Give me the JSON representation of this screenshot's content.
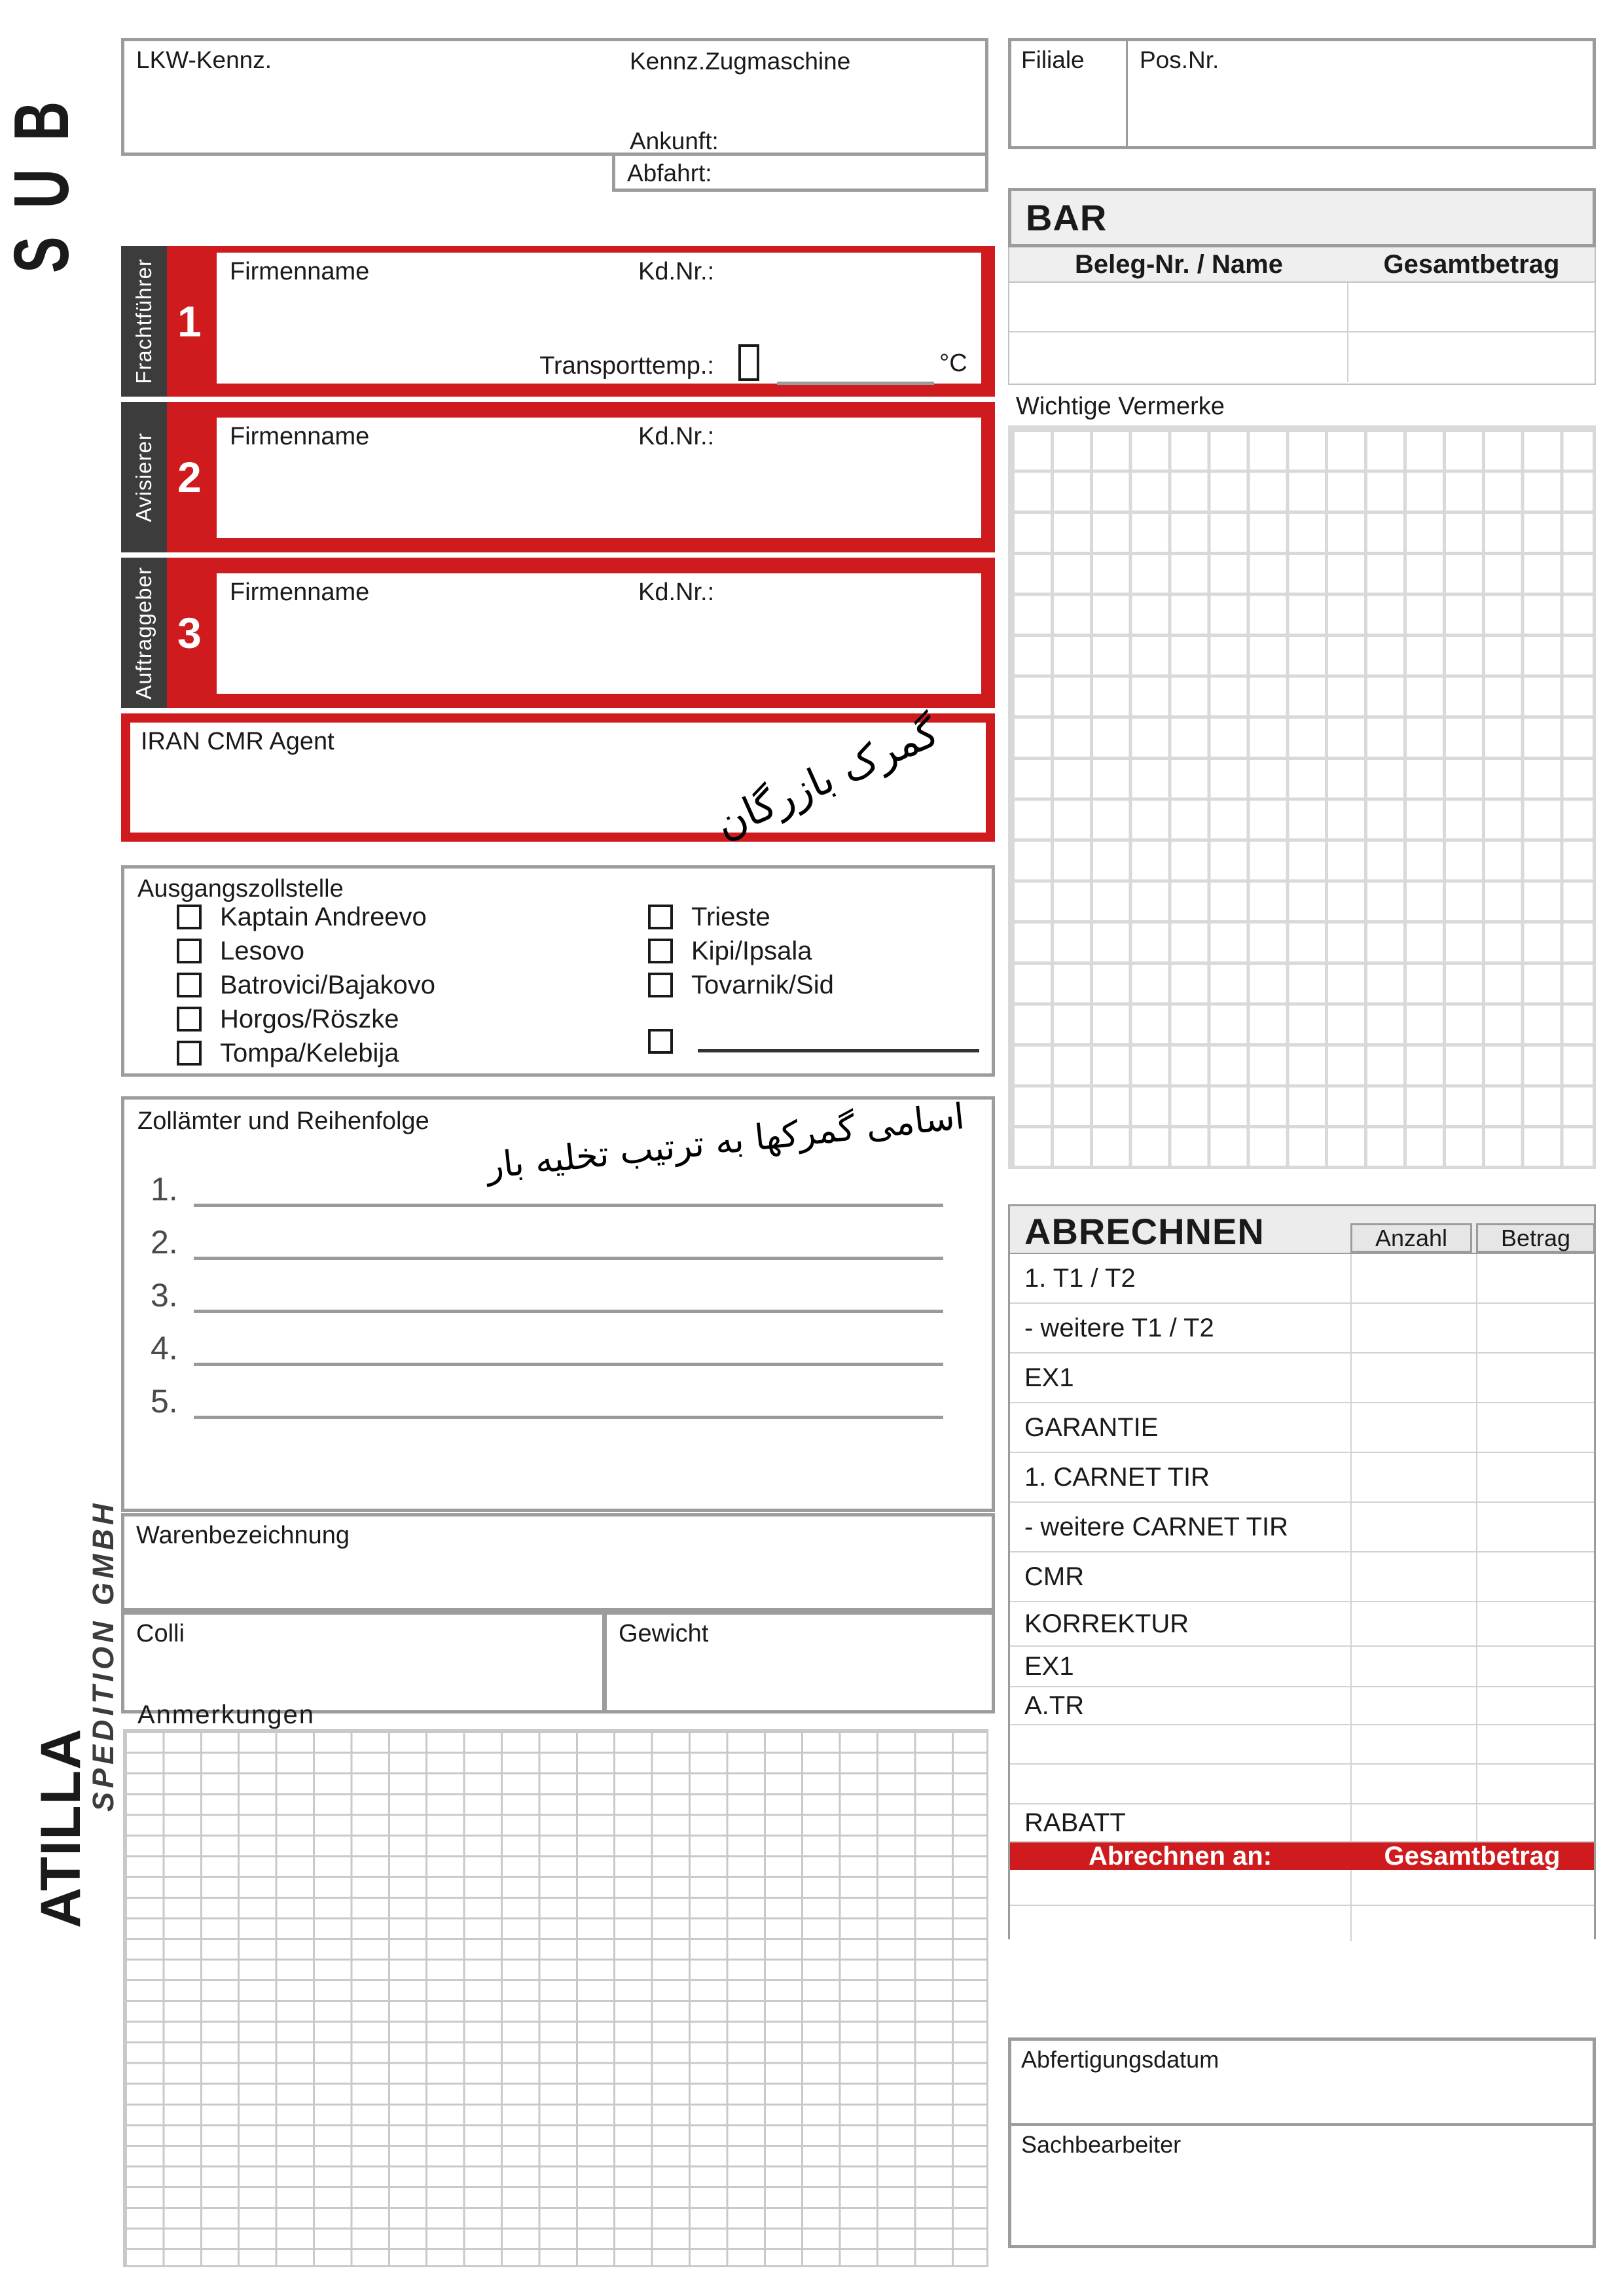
{
  "logo": {
    "sub": "SUB",
    "atilla": "ATILLA",
    "spedition": "SPEDITION GMBH"
  },
  "colors": {
    "red": "#cf1b1d",
    "dark": "#3d3c3c"
  },
  "header": {
    "lkw_kennz": "LKW-Kennz.",
    "kennz_zugmaschine": "Kennz.Zugmaschine",
    "ankunft": "Ankunft:",
    "abfahrt": "Abfahrt:",
    "filiale": "Filiale",
    "pos_nr": "Pos.Nr."
  },
  "bar": {
    "title": "BAR",
    "col_beleg": "Beleg-Nr. / Name",
    "col_gesamt": "Gesamtbetrag",
    "empty_rows": 2
  },
  "sections": [
    {
      "number": "1",
      "side_label": "Frachtführer",
      "firmenname": "Firmenname",
      "kd_nr": "Kd.Nr.:",
      "transporttemp": "Transporttemp.:",
      "unit": "°C"
    },
    {
      "number": "2",
      "side_label": "Avisierer",
      "firmenname": "Firmenname",
      "kd_nr": "Kd.Nr.:"
    },
    {
      "number": "3",
      "side_label": "Auftraggeber",
      "firmenname": "Firmenname",
      "kd_nr": "Kd.Nr.:"
    }
  ],
  "iran_cmr": {
    "label": "IRAN CMR Agent",
    "handwriting": "گمرک بازرگان"
  },
  "wichtige_vermerke": {
    "label": "Wichtige Vermerke"
  },
  "ausgangszollstelle": {
    "label": "Ausgangszollstelle",
    "left_items": [
      "Kaptain Andreevo",
      "Lesovo",
      "Batrovici/Bajakovo",
      "Horgos/Röszke",
      "Tompa/Kelebija"
    ],
    "right_items": [
      "Trieste",
      "Kipi/Ipsala",
      "Tovarnik/Sid"
    ],
    "other_option": ""
  },
  "zollaemter": {
    "label": "Zollämter und Reihenfolge",
    "handwriting": "اسامی گمرکها به ترتیب تخلیه بار",
    "numbers": [
      "1.",
      "2.",
      "3.",
      "4.",
      "5."
    ]
  },
  "waren": {
    "label": "Warenbezeichnung"
  },
  "colli": {
    "label": "Colli"
  },
  "gewicht": {
    "label": "Gewicht"
  },
  "anmerkungen": {
    "label": "Anmerkungen"
  },
  "abrechnen": {
    "title": "ABRECHNEN",
    "col_anzahl": "Anzahl",
    "col_betrag": "Betrag",
    "rows": [
      "1. T1 / T2",
      " - weitere T1 / T2",
      "EX1",
      "GARANTIE",
      "1. CARNET TIR",
      " - weitere CARNET TIR",
      "CMR",
      "KORREKTUR",
      "EX1",
      "A.TR",
      "",
      "",
      "RABATT"
    ],
    "bar_left": "Abrechnen an:",
    "bar_right": "Gesamtbetrag"
  },
  "footer": {
    "abfertigungsdatum": "Abfertigungsdatum",
    "sachbearbeiter": "Sachbearbeiter"
  }
}
